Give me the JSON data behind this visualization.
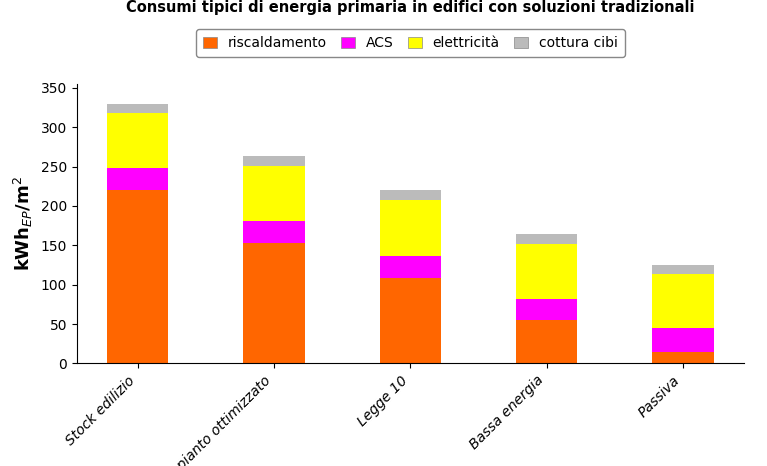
{
  "title": "Consumi tipici di energia primaria in edifici con soluzioni tradizionali",
  "categories": [
    "Stock edilizio",
    "Impianto ottimizzato",
    "Legge 10",
    "Bassa energia",
    "Passiva"
  ],
  "series": {
    "riscaldamento": [
      220,
      153,
      108,
      55,
      15
    ],
    "ACS": [
      28,
      28,
      28,
      27,
      30
    ],
    "elettricità": [
      70,
      70,
      72,
      70,
      68
    ],
    "cottura cibi": [
      12,
      12,
      12,
      12,
      12
    ]
  },
  "colors": {
    "riscaldamento": "#FF6600",
    "ACS": "#FF00FF",
    "elettricità": "#FFFF00",
    "cottura cibi": "#BBBBBB"
  },
  "ylabel": "kWh$_{EP}$/m$^2$",
  "ylim": [
    0,
    355
  ],
  "yticks": [
    0,
    50,
    100,
    150,
    200,
    250,
    300,
    350
  ],
  "legend_order": [
    "riscaldamento",
    "ACS",
    "elettricità",
    "cottura cibi"
  ],
  "background_color": "#FFFFFF",
  "title_fontsize": 10.5,
  "ylabel_fontsize": 13,
  "tick_fontsize": 10,
  "legend_fontsize": 10,
  "bar_width": 0.45
}
